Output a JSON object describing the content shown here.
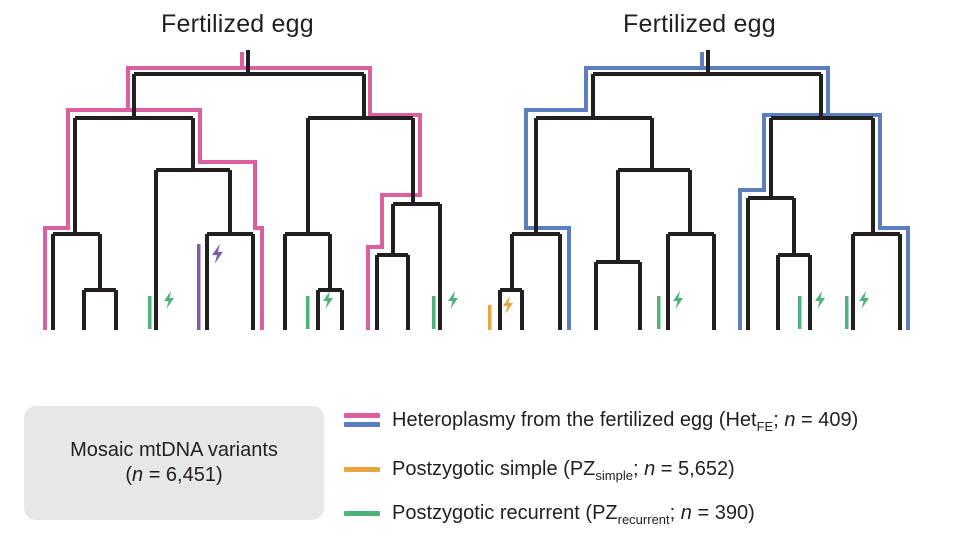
{
  "titles": {
    "left": "Fertilized egg",
    "right": "Fertilized egg"
  },
  "summary": {
    "line1": "Mosaic mtDNA variants",
    "n_symbol": "n",
    "n_value": " = 6,451"
  },
  "legend": {
    "het": {
      "prefix": "Heteroplasmy from the fertilized egg (Het",
      "sub": "FE",
      "sep": "; ",
      "n_symbol": "n",
      "value": " = 409)"
    },
    "simple": {
      "prefix": "Postzygotic simple (PZ",
      "sub": "simple",
      "sep": "; ",
      "n_symbol": "n",
      "value": " = 5,652)"
    },
    "recurrent": {
      "prefix": "Postzygotic recurrent (PZ",
      "sub": "recurrent",
      "sep": "; ",
      "n_symbol": "n",
      "value": " = 390)"
    }
  },
  "colors": {
    "tree": "#231f20",
    "het_left": "#dc5fa0",
    "het_right": "#5b7fbe",
    "simple": "#e8a540",
    "recurrent": "#4fb27a",
    "somatic_purple": "#7c5cac",
    "box": "#e6e7e8"
  }
}
